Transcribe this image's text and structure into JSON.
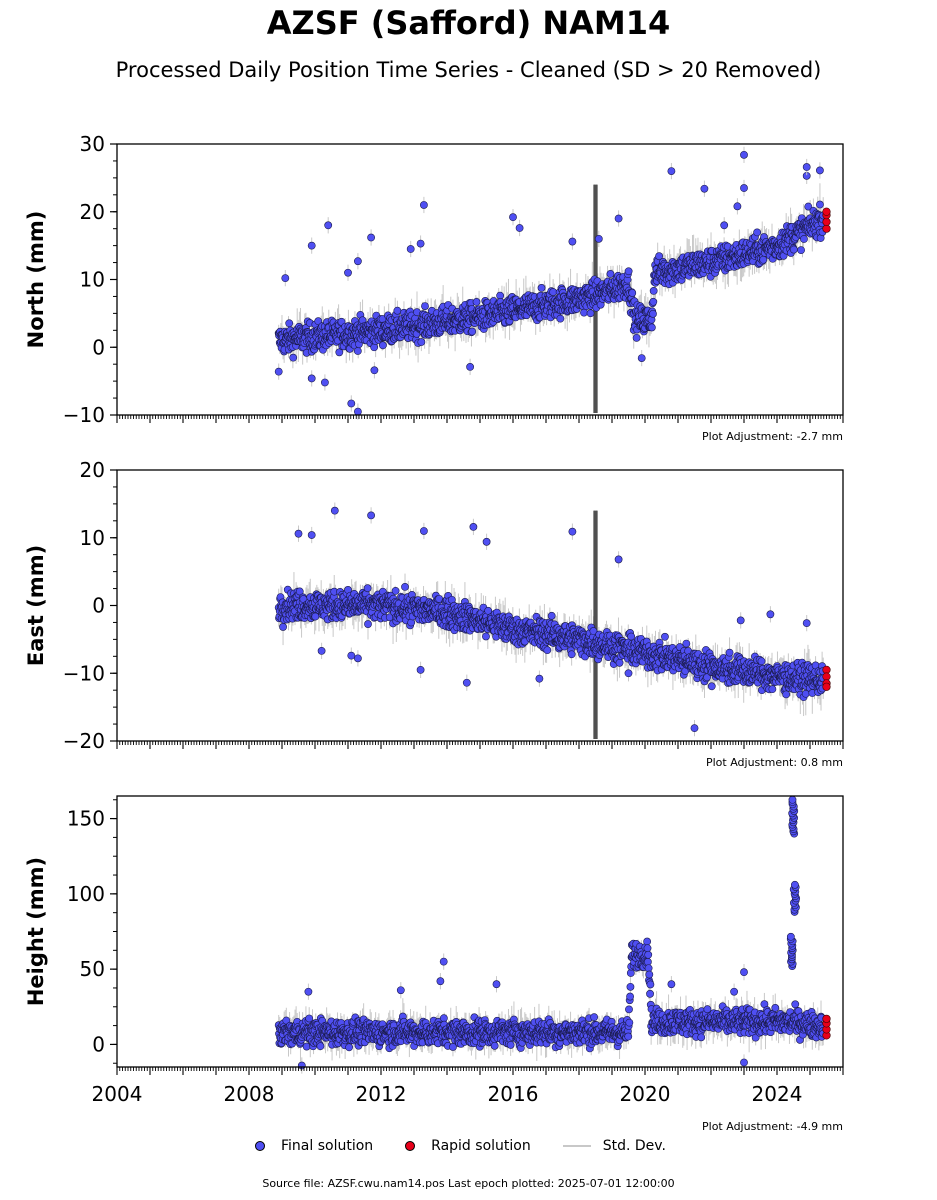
{
  "title": "AZSF (Safford) NAM14",
  "subtitle": "Processed Daily Position Time Series - Cleaned (SD > 20 Removed)",
  "colors": {
    "final": "#4f4ff2",
    "rapid": "#e8001a",
    "stddev": "#c8c8c8",
    "stddev_dark": "#505050"
  },
  "legend": {
    "final": "Final solution",
    "rapid": "Rapid solution",
    "std": "Std. Dev."
  },
  "footer": "Source file: AZSF.cwu.nam14.pos  Last epoch plotted: 2025-07-01 12:00:00",
  "chart_data": [
    {
      "type": "scatter",
      "ylabel": "North (mm)",
      "ylim": [
        -10,
        30
      ],
      "yticks": [
        -10,
        0,
        10,
        20,
        30
      ],
      "xlim": [
        2004,
        2026
      ],
      "grid": false,
      "adjustment": "Plot Adjustment: -2.7 mm",
      "trend": [
        [
          2008.9,
          1
        ],
        [
          2012,
          2.5
        ],
        [
          2015,
          4.5
        ],
        [
          2018.4,
          7.5
        ],
        [
          2019.5,
          9.5
        ],
        [
          2019.7,
          4
        ],
        [
          2020.2,
          4
        ],
        [
          2020.3,
          11
        ],
        [
          2022,
          12.5
        ],
        [
          2024,
          15
        ],
        [
          2025.4,
          19
        ]
      ],
      "outliers": [
        [
          2009.1,
          10.2
        ],
        [
          2009.9,
          15
        ],
        [
          2010.4,
          18
        ],
        [
          2011,
          11
        ],
        [
          2011.3,
          12.7
        ],
        [
          2011.7,
          16.2
        ],
        [
          2011.3,
          -9.5
        ],
        [
          2011.1,
          -8.3
        ],
        [
          2012.9,
          14.5
        ],
        [
          2013.2,
          15.3
        ],
        [
          2013.3,
          21
        ],
        [
          2014.7,
          -2.9
        ],
        [
          2016.0,
          19.2
        ],
        [
          2016.2,
          17.6
        ],
        [
          2017.8,
          15.6
        ],
        [
          2018.6,
          16
        ],
        [
          2019.2,
          19
        ],
        [
          2020.8,
          26
        ],
        [
          2021.8,
          23.4
        ],
        [
          2022.4,
          18
        ],
        [
          2022.8,
          20.8
        ],
        [
          2023.0,
          28.4
        ],
        [
          2023.0,
          23.5
        ],
        [
          2024.9,
          25.3
        ],
        [
          2024.9,
          26.6
        ],
        [
          2025.3,
          26.1
        ],
        [
          2010.3,
          -5.2
        ],
        [
          2009.9,
          -4.6
        ],
        [
          2011.8,
          -3.4
        ],
        [
          2008.9,
          -3.6
        ],
        [
          2019.9,
          -1.6
        ]
      ],
      "rapid": [
        [
          2025.5,
          17.5
        ],
        [
          2025.5,
          18.5
        ],
        [
          2025.5,
          19.5
        ],
        [
          2025.5,
          20
        ]
      ]
    },
    {
      "type": "scatter",
      "ylabel": "East (mm)",
      "ylim": [
        -20,
        20
      ],
      "yticks": [
        -20,
        -10,
        0,
        10,
        20
      ],
      "xlim": [
        2004,
        2026
      ],
      "grid": false,
      "adjustment": "Plot Adjustment: 0.8 mm",
      "trend": [
        [
          2008.9,
          0
        ],
        [
          2012,
          0
        ],
        [
          2014,
          -1
        ],
        [
          2016,
          -3.5
        ],
        [
          2018,
          -5
        ],
        [
          2020,
          -7
        ],
        [
          2022,
          -9
        ],
        [
          2024,
          -10.5
        ],
        [
          2025.4,
          -11
        ]
      ],
      "outliers": [
        [
          2009.5,
          10.6
        ],
        [
          2009.9,
          10.4
        ],
        [
          2010.6,
          14
        ],
        [
          2011.7,
          13.3
        ],
        [
          2013.3,
          11
        ],
        [
          2014.8,
          11.6
        ],
        [
          2015.2,
          9.4
        ],
        [
          2017.8,
          10.9
        ],
        [
          2019.2,
          6.8
        ],
        [
          2014.6,
          -11.4
        ],
        [
          2011.3,
          -7.8
        ],
        [
          2011.1,
          -7.4
        ],
        [
          2013.2,
          -9.5
        ],
        [
          2021.5,
          -18.1
        ],
        [
          2024.9,
          -2.6
        ],
        [
          2023.8,
          -1.3
        ],
        [
          2022.9,
          -2.2
        ],
        [
          2010.2,
          -6.7
        ],
        [
          2016.8,
          -10.8
        ],
        [
          2019.5,
          -10
        ]
      ],
      "rapid": [
        [
          2025.5,
          -9.5
        ],
        [
          2025.5,
          -10.5
        ],
        [
          2025.5,
          -11.5
        ],
        [
          2025.5,
          -12
        ]
      ]
    },
    {
      "type": "scatter",
      "ylabel": "Height (mm)",
      "ylim": [
        -15,
        165
      ],
      "yticks": [
        0,
        50,
        100,
        150
      ],
      "xlim": [
        2004,
        2026
      ],
      "xticks": [
        2004,
        2008,
        2012,
        2016,
        2020,
        2024
      ],
      "grid": false,
      "adjustment": "Plot Adjustment: -4.9 mm",
      "trend": [
        [
          2008.9,
          8
        ],
        [
          2019.5,
          8
        ],
        [
          2019.6,
          60
        ],
        [
          2020.1,
          60
        ],
        [
          2020.2,
          15
        ],
        [
          2024.5,
          15
        ],
        [
          2025.4,
          12
        ]
      ],
      "outliers": [
        [
          2013.9,
          55
        ],
        [
          2013.8,
          42
        ],
        [
          2009.8,
          35
        ],
        [
          2012.6,
          36
        ],
        [
          2015.5,
          40
        ],
        [
          2020.8,
          40
        ],
        [
          2023.0,
          48
        ],
        [
          2023.0,
          -12
        ],
        [
          2009.6,
          -14
        ],
        [
          2022.7,
          35
        ]
      ],
      "spikes": [
        [
          2024.45,
          52,
          72
        ],
        [
          2024.55,
          88,
          106
        ],
        [
          2024.5,
          140,
          163
        ]
      ],
      "rapid": [
        [
          2025.5,
          6
        ],
        [
          2025.5,
          10
        ],
        [
          2025.5,
          14
        ],
        [
          2025.5,
          17
        ]
      ]
    }
  ]
}
